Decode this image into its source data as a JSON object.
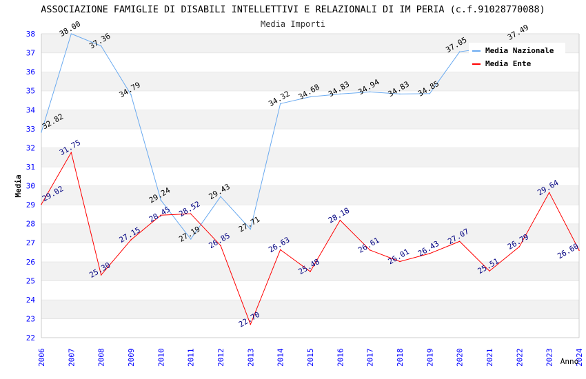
{
  "chart_data": {
    "type": "line",
    "title": "ASSOCIAZIONE FAMIGLIE DI DISABILI INTELLETTIVI E RELAZIONALI DI IM PERIA (c.f.91028770088)",
    "subtitle": "Media Importi",
    "xlabel": "Anno",
    "ylabel": "Media",
    "ylim": [
      22,
      38
    ],
    "yticks": [
      "22",
      "23",
      "24",
      "25",
      "26",
      "27",
      "28",
      "29",
      "30",
      "31",
      "32",
      "33",
      "34",
      "35",
      "36",
      "37",
      "38"
    ],
    "x": [
      "2006",
      "2007",
      "2008",
      "2009",
      "2010",
      "2011",
      "2012",
      "2013",
      "2014",
      "2015",
      "2016",
      "2017",
      "2018",
      "2019",
      "2020",
      "2021",
      "2022",
      "2023",
      "2024"
    ],
    "grid": true,
    "legend_position": "top-right",
    "series": [
      {
        "name": "Media Nazionale",
        "color": "#6aaaf0",
        "label_color": "#000000",
        "values": [
          32.82,
          38.0,
          37.36,
          34.79,
          29.24,
          27.19,
          29.43,
          27.71,
          34.32,
          34.68,
          34.83,
          34.94,
          34.83,
          34.85,
          37.05,
          null,
          37.49,
          null,
          null
        ],
        "labels": [
          "32.82",
          "38.00",
          "37.36",
          "34.79",
          "29.24",
          "27.19",
          "29.43",
          "27.71",
          "34.32",
          "34.68",
          "34.83",
          "34.94",
          "34.83",
          "34.85",
          "37.05",
          null,
          "37.49",
          null,
          null
        ]
      },
      {
        "name": "Media Ente",
        "color": "#ff0000",
        "label_color": "#000080",
        "values": [
          29.02,
          31.75,
          25.3,
          27.15,
          28.45,
          28.52,
          26.85,
          22.7,
          26.63,
          25.48,
          28.18,
          26.61,
          26.01,
          26.43,
          27.07,
          25.51,
          26.79,
          29.64,
          26.6
        ],
        "labels": [
          "29.02",
          "31.75",
          "25.30",
          "27.15",
          "28.45",
          "28.52",
          "26.85",
          "22.70",
          "26.63",
          "25.48",
          "28.18",
          "26.61",
          "26.01",
          "26.43",
          "27.07",
          "25.51",
          "26.79",
          "29.64",
          "26.60"
        ]
      }
    ]
  }
}
